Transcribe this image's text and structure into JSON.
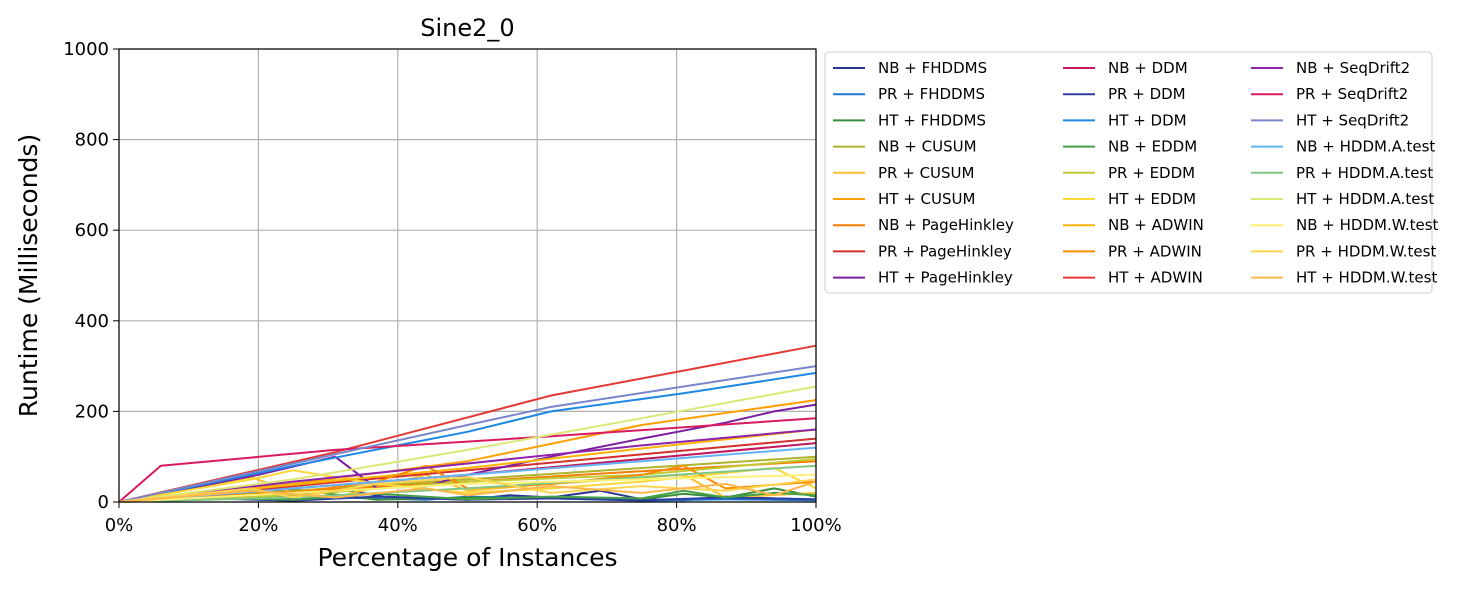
{
  "chart_data": {
    "type": "line",
    "title": "Sine2_0",
    "xlabel": "Percentage of Instances",
    "ylabel": "Runtime (Milliseconds)",
    "xlim": [
      0,
      100
    ],
    "ylim": [
      0,
      1000
    ],
    "x_ticks": [
      "0%",
      "20%",
      "40%",
      "60%",
      "80%",
      "100%"
    ],
    "y_ticks": [
      "0",
      "200",
      "400",
      "600",
      "800",
      "1000"
    ],
    "grid": true,
    "legend_position": "outside right, 3 columns",
    "series": [
      {
        "name": "NB + FHDDMS",
        "color": "#283593",
        "x": [
          0,
          19,
          25,
          31,
          38,
          50,
          56,
          62,
          69,
          75,
          81,
          87,
          94,
          100
        ],
        "y": [
          0,
          15,
          8,
          30,
          12,
          5,
          15,
          10,
          25,
          6,
          4,
          12,
          8,
          5
        ]
      },
      {
        "name": "PR + FHDDMS",
        "color": "#1976d2",
        "x": [
          0,
          6,
          12,
          19,
          25,
          31,
          44,
          50,
          62,
          75,
          87,
          100
        ],
        "y": [
          0,
          4,
          10,
          6,
          3,
          10,
          5,
          12,
          8,
          3,
          6,
          4
        ]
      },
      {
        "name": "HT + FHDDMS",
        "color": "#388e3c",
        "x": [
          0,
          12,
          25,
          37,
          50,
          62,
          75,
          81,
          87,
          94,
          100
        ],
        "y": [
          0,
          12,
          28,
          5,
          10,
          8,
          6,
          18,
          10,
          30,
          12
        ]
      },
      {
        "name": "NB + CUSUM",
        "color": "#afb42b",
        "x": [
          0,
          25,
          50,
          75,
          100
        ],
        "y": [
          0,
          25,
          50,
          75,
          100
        ]
      },
      {
        "name": "PR + CUSUM",
        "color": "#fbc02d",
        "x": [
          0,
          19,
          25,
          31,
          44,
          50,
          62,
          81,
          87,
          100
        ],
        "y": [
          0,
          55,
          20,
          10,
          60,
          25,
          40,
          60,
          10,
          20
        ]
      },
      {
        "name": "HT + CUSUM",
        "color": "#ffa000",
        "x": [
          0,
          25,
          50,
          75,
          100
        ],
        "y": [
          0,
          40,
          90,
          170,
          225
        ]
      },
      {
        "name": "NB + PageHinkley",
        "color": "#f57c00",
        "x": [
          0,
          25,
          50,
          75,
          100
        ],
        "y": [
          0,
          22,
          45,
          68,
          90
        ]
      },
      {
        "name": "PR + PageHinkley",
        "color": "#d32f2f",
        "x": [
          0,
          25,
          50,
          75,
          100
        ],
        "y": [
          0,
          35,
          70,
          105,
          140
        ]
      },
      {
        "name": "HT + PageHinkley",
        "color": "#7b1fa2",
        "x": [
          0,
          20,
          31,
          37,
          44,
          50,
          62,
          75,
          87,
          94,
          100
        ],
        "y": [
          0,
          60,
          100,
          30,
          35,
          60,
          100,
          140,
          175,
          200,
          215
        ]
      },
      {
        "name": "NB + DDM",
        "color": "#c2185b",
        "x": [
          0,
          25,
          50,
          75,
          100
        ],
        "y": [
          0,
          30,
          60,
          95,
          130
        ]
      },
      {
        "name": "PR + DDM",
        "color": "#303f9f",
        "x": [
          0,
          12,
          25,
          37,
          50,
          62,
          75,
          87,
          100
        ],
        "y": [
          0,
          8,
          3,
          12,
          5,
          8,
          4,
          10,
          6
        ]
      },
      {
        "name": "HT + DDM",
        "color": "#1e88e5",
        "x": [
          0,
          25,
          50,
          62,
          81,
          100
        ],
        "y": [
          0,
          80,
          155,
          200,
          240,
          285
        ]
      },
      {
        "name": "NB + EDDM",
        "color": "#43a047",
        "x": [
          0,
          12,
          25,
          37,
          50,
          62,
          75,
          81,
          87,
          94,
          100
        ],
        "y": [
          0,
          10,
          5,
          18,
          6,
          12,
          8,
          25,
          10,
          20,
          15
        ]
      },
      {
        "name": "PR + EDDM",
        "color": "#c0ca33",
        "x": [
          0,
          25,
          50,
          75,
          100
        ],
        "y": [
          0,
          15,
          45,
          60,
          95
        ]
      },
      {
        "name": "HT + EDDM",
        "color": "#fdd835",
        "x": [
          0,
          19,
          25,
          37,
          50,
          62,
          75,
          94,
          100
        ],
        "y": [
          0,
          50,
          70,
          40,
          20,
          30,
          45,
          75,
          30
        ]
      },
      {
        "name": "NB + ADWIN",
        "color": "#ffb300",
        "x": [
          0,
          25,
          50,
          75,
          100
        ],
        "y": [
          0,
          38,
          75,
          118,
          160
        ]
      },
      {
        "name": "PR + ADWIN",
        "color": "#fb8c00",
        "x": [
          0,
          25,
          37,
          44,
          50,
          62,
          75,
          81,
          87,
          100
        ],
        "y": [
          0,
          20,
          45,
          80,
          30,
          40,
          60,
          80,
          30,
          45
        ]
      },
      {
        "name": "HT + ADWIN",
        "color": "#e53935",
        "x": [
          0,
          31,
          62,
          81,
          100
        ],
        "y": [
          0,
          110,
          235,
          290,
          345
        ]
      },
      {
        "name": "NB + SeqDrift2",
        "color": "#8e24aa",
        "x": [
          0,
          25,
          50,
          75,
          100
        ],
        "y": [
          0,
          45,
          85,
          125,
          160
        ]
      },
      {
        "name": "PR + SeqDrift2",
        "color": "#d81b60",
        "x": [
          0,
          6,
          31,
          62,
          100
        ],
        "y": [
          0,
          80,
          115,
          145,
          185
        ]
      },
      {
        "name": "HT + SeqDrift2",
        "color": "#7986cb",
        "x": [
          0,
          25,
          50,
          62,
          81,
          100
        ],
        "y": [
          0,
          85,
          170,
          210,
          255,
          300
        ]
      },
      {
        "name": "NB + HDDM.A.test",
        "color": "#64b5f6",
        "x": [
          0,
          25,
          50,
          75,
          100
        ],
        "y": [
          0,
          30,
          60,
          90,
          120
        ]
      },
      {
        "name": "PR + HDDM.A.test",
        "color": "#81c784",
        "x": [
          0,
          25,
          50,
          75,
          100
        ],
        "y": [
          0,
          10,
          30,
          55,
          80
        ]
      },
      {
        "name": "HT + HDDM.A.test",
        "color": "#dce775",
        "x": [
          0,
          25,
          50,
          75,
          100
        ],
        "y": [
          0,
          50,
          115,
          185,
          255
        ]
      },
      {
        "name": "NB + HDDM.W.test",
        "color": "#fff176",
        "x": [
          0,
          25,
          50,
          75,
          100
        ],
        "y": [
          0,
          20,
          40,
          50,
          60
        ]
      },
      {
        "name": "PR + HDDM.W.test",
        "color": "#ffd54f",
        "x": [
          0,
          19,
          25,
          37,
          50,
          62,
          75,
          87,
          100
        ],
        "y": [
          0,
          30,
          10,
          40,
          55,
          20,
          35,
          25,
          50
        ]
      },
      {
        "name": "HT + HDDM.W.test",
        "color": "#ffb74d",
        "x": [
          0,
          19,
          31,
          44,
          50,
          62,
          75,
          87,
          94,
          100
        ],
        "y": [
          0,
          25,
          10,
          30,
          15,
          35,
          20,
          40,
          15,
          45
        ]
      }
    ]
  }
}
